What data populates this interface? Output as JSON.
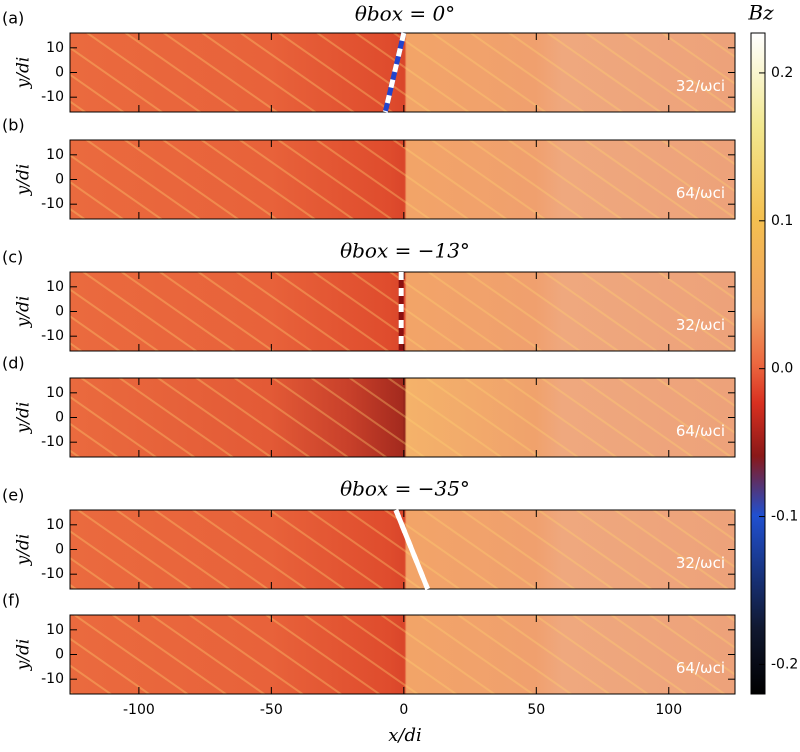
{
  "chart_data": [
    {
      "type": "heatmap",
      "panel": "(a)",
      "title": "θbox = 0°",
      "time_label": "32/ωci",
      "ylabel": "y/di",
      "xlim": [
        -126,
        125
      ],
      "ylim": [
        -16,
        16
      ],
      "xticks": [
        -100,
        -50,
        0,
        50,
        100
      ],
      "yticks": [
        -10,
        0,
        10
      ],
      "shock_line": {
        "x": [
          0,
          -7
        ],
        "y": [
          16,
          -16
        ],
        "colors": [
          "#ffffff",
          "#2244cc"
        ]
      }
    },
    {
      "type": "heatmap",
      "panel": "(b)",
      "time_label": "64/ωci",
      "ylabel": "y/di",
      "xlim": [
        -126,
        125
      ],
      "ylim": [
        -16,
        16
      ],
      "xticks": [
        -100,
        -50,
        0,
        50,
        100
      ],
      "yticks": [
        -10,
        0,
        10
      ]
    },
    {
      "type": "heatmap",
      "panel": "(c)",
      "title": "θbox = −13°",
      "time_label": "32/ωci",
      "ylabel": "y/di",
      "xlim": [
        -126,
        125
      ],
      "ylim": [
        -16,
        16
      ],
      "xticks": [
        -100,
        -50,
        0,
        50,
        100
      ],
      "yticks": [
        -10,
        0,
        10
      ],
      "shock_line": {
        "x": [
          -1,
          -1
        ],
        "y": [
          16,
          -16
        ],
        "colors": [
          "#ffffff",
          "#8b1010"
        ]
      }
    },
    {
      "type": "heatmap",
      "panel": "(d)",
      "time_label": "64/ωci",
      "ylabel": "y/di",
      "xlim": [
        -126,
        125
      ],
      "ylim": [
        -16,
        16
      ],
      "xticks": [
        -100,
        -50,
        0,
        50,
        100
      ],
      "yticks": [
        -10,
        0,
        10
      ]
    },
    {
      "type": "heatmap",
      "panel": "(e)",
      "title": "θbox = −35°",
      "time_label": "32/ωci",
      "ylabel": "y/di",
      "xlim": [
        -126,
        125
      ],
      "ylim": [
        -16,
        16
      ],
      "xticks": [
        -100,
        -50,
        0,
        50,
        100
      ],
      "yticks": [
        -10,
        0,
        10
      ],
      "shock_line": {
        "x": [
          -3,
          9
        ],
        "y": [
          16,
          -16
        ],
        "colors": [
          "#ffffff",
          "#ffffff"
        ]
      }
    },
    {
      "type": "heatmap",
      "panel": "(f)",
      "time_label": "64/ωci",
      "ylabel": "y/di",
      "xlabel": "x/di",
      "xlim": [
        -126,
        125
      ],
      "ylim": [
        -16,
        16
      ],
      "xticks": [
        -100,
        -50,
        0,
        50,
        100
      ],
      "yticks": [
        -10,
        0,
        10
      ]
    },
    {
      "type": "colorbar",
      "title": "Bz",
      "ylim": [
        -0.22,
        0.227
      ],
      "yticks": [
        -0.2,
        -0.1,
        {
          "value": 0,
          "label": "0.0"
        },
        0.1,
        0.2
      ]
    }
  ]
}
